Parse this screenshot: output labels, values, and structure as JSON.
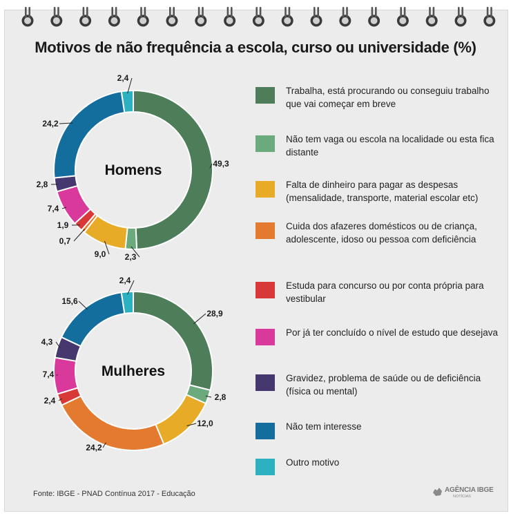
{
  "title": "Motivos de não frequência a escola, curso ou universidade (%)",
  "footer": "Fonte: IBGE - PNAD Contínua 2017 - Educação",
  "brand": {
    "name": "AGÊNCIA IBGE",
    "sub": "NOTÍCIAS"
  },
  "legend": [
    {
      "label": "Trabalha, está procurando ou conseguiu trabalho que vai começar em breve",
      "color": "#4e7d5a"
    },
    {
      "label": "Não tem vaga ou escola na localidade ou esta fica distante",
      "color": "#6aaa7c"
    },
    {
      "label": "Falta de dinheiro para pagar as despesas (mensalidade, transporte, material escolar etc)",
      "color": "#e8ab27"
    },
    {
      "label": "Cuida dos afazeres domésticos ou de criança, adolescente, idoso ou pessoa com deficiência",
      "color": "#e37a30"
    },
    {
      "label": "Estuda para concurso ou por conta própria para vestibular",
      "color": "#d93838"
    },
    {
      "label": "Por já ter concluído o nível de estudo que desejava",
      "color": "#d9399b"
    },
    {
      "label": "Gravidez, problema de saúde ou de deficiência (física ou mental)",
      "color": "#47376f"
    },
    {
      "label": "Não tem interesse",
      "color": "#136e9e"
    },
    {
      "label": "Outro motivo",
      "color": "#2bb1c0"
    }
  ],
  "chart_data": [
    {
      "type": "pie",
      "title": "Homens",
      "categories": [
        "Trabalha, está procurando ou conseguiu trabalho que vai começar em breve",
        "Não tem vaga ou escola na localidade ou esta fica distante",
        "Falta de dinheiro para pagar as despesas (mensalidade, transporte, material escolar etc)",
        "Cuida dos afazeres domésticos ou de criança, adolescente, idoso ou pessoa com deficiência",
        "Estuda para concurso ou por conta própria para vestibular",
        "Por já ter concluído o nível de estudo que desejava",
        "Gravidez, problema de saúde ou de deficiência (física ou mental)",
        "Não tem interesse",
        "Outro motivo"
      ],
      "values": [
        49.3,
        2.3,
        9.0,
        0.7,
        1.9,
        7.4,
        2.8,
        24.2,
        2.4
      ],
      "value_labels": [
        "49,3",
        "2,3",
        "9,0",
        "0,7",
        "1,9",
        "7,4",
        "2,8",
        "24,2",
        "2,4"
      ]
    },
    {
      "type": "pie",
      "title": "Mulheres",
      "categories": [
        "Trabalha, está procurando ou conseguiu trabalho que vai começar em breve",
        "Não tem vaga ou escola na localidade ou esta fica distante",
        "Falta de dinheiro para pagar as despesas (mensalidade, transporte, material escolar etc)",
        "Cuida dos afazeres domésticos ou de criança, adolescente, idoso ou pessoa com deficiência",
        "Estuda para concurso ou por conta própria para vestibular",
        "Por já ter concluído o nível de estudo que desejava",
        "Gravidez, problema de saúde ou de deficiência (física ou mental)",
        "Não tem interesse",
        "Outro motivo"
      ],
      "values": [
        28.9,
        2.8,
        12.0,
        24.2,
        2.4,
        7.4,
        4.3,
        15.6,
        2.4
      ],
      "value_labels": [
        "28,9",
        "2,8",
        "12,0",
        "24,2",
        "2,4",
        "7,4",
        "4,3",
        "15,6",
        "2,4"
      ]
    }
  ]
}
